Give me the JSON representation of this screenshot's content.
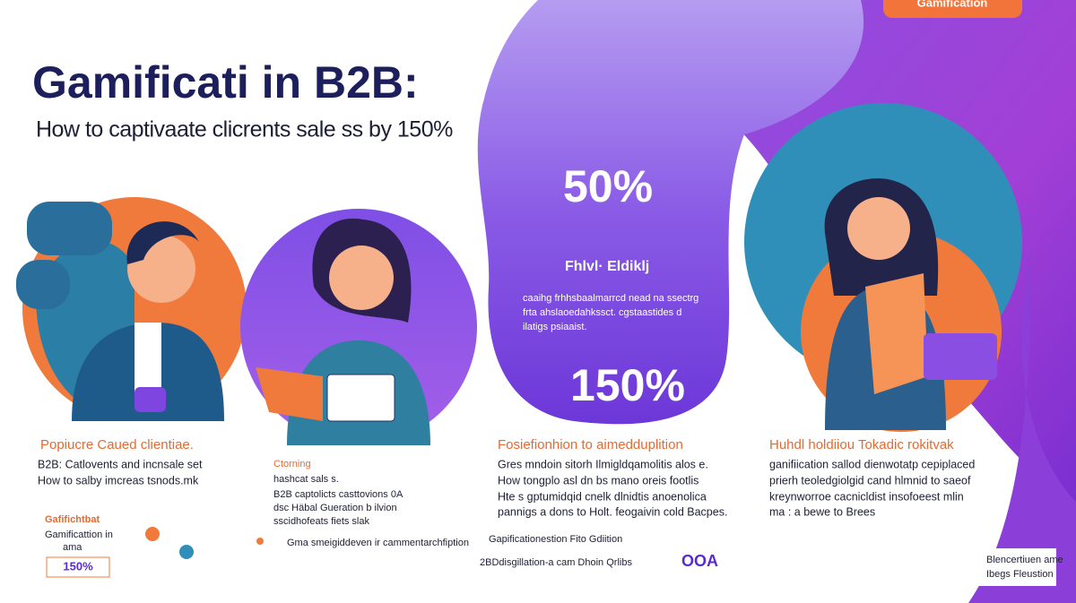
{
  "header": {
    "title": "Gamificati in B2B:",
    "subtitle": "How to captivaate clicrents sale ss by 150%",
    "tag": "Gamification"
  },
  "panel": {
    "stat_top": "50%",
    "heading": "Fhlvl·  Eldiklj",
    "lines": [
      "caaihg frhhsbaalmarrcd nead na ssectrg",
      "frta ahslaoedahkssct. cgstaastides d",
      "ilatigs psiaaist."
    ],
    "stat_bottom": "150%"
  },
  "columns": [
    {
      "heading": "Popiucre Caued clientiae.",
      "lines": [
        "B2B: Catlovents and incnsale set",
        "How to salby imcreas tsnods.mk"
      ]
    },
    {
      "heading": "Ctorning",
      "lines": [
        "hashcat sals s.",
        "B2B captolicts casttovions 0A",
        "dsc Häbal Gueration b ilvion",
        "sscidhofeats fiets slak"
      ]
    },
    {
      "heading": "Fosiefionhion to aimedduplition",
      "lines": [
        "Gres mndoin sitorh Ilmigldqamolitis alos e.",
        "How tongplo asl dn bs mano oreis footlis",
        "Hte s gptumidqid cnelk dlnidtis anoenolica",
        "pannigs a dons to Holt. feogaivin cold Bacpes."
      ]
    },
    {
      "heading": "Huhdl holdiiou Tokadic rokitvak",
      "lines": [
        "ganifiication sallod dienwotatp cepiplaced",
        "prierh teoledgiolgid cand hlmnid to saeof",
        "kreynworroe cacnicldist insofoeest mlin",
        "ma : a bewe to Brees"
      ]
    }
  ],
  "footer": {
    "left_head": "Gafifichtbat",
    "left_lines": [
      "Gamificattion in",
      "ama"
    ],
    "left_badge": "150%",
    "middle": "Gma smeigiddeven ir cammentarchfiption",
    "center_top": "Gapificationestion Fito Gdiition",
    "center_bottom": "2BDdisgillation-a cam  Dhoin Qrlibs",
    "center_mark": "OOA",
    "box_lines": [
      "Blencertiuen ame",
      "Ibegs Fleustion"
    ]
  }
}
